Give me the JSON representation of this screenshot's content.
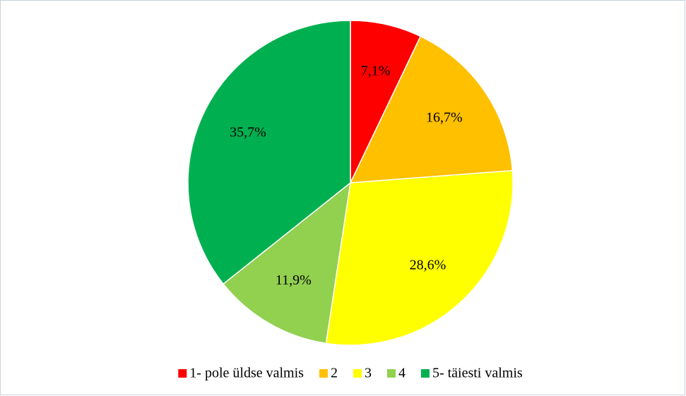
{
  "chart_data": {
    "type": "pie",
    "categories": [
      "1- pole üldse valmis",
      "2",
      "3",
      "4",
      "5- täiesti valmis"
    ],
    "values": [
      7.1,
      16.7,
      28.6,
      11.9,
      35.7
    ],
    "value_labels": [
      "7,1%",
      "16,7%",
      "28,6%",
      "11,9%",
      "35,7%"
    ],
    "colors": [
      "#ff0000",
      "#ffc000",
      "#ffff00",
      "#92d050",
      "#00b050"
    ],
    "legend": "bottom"
  }
}
